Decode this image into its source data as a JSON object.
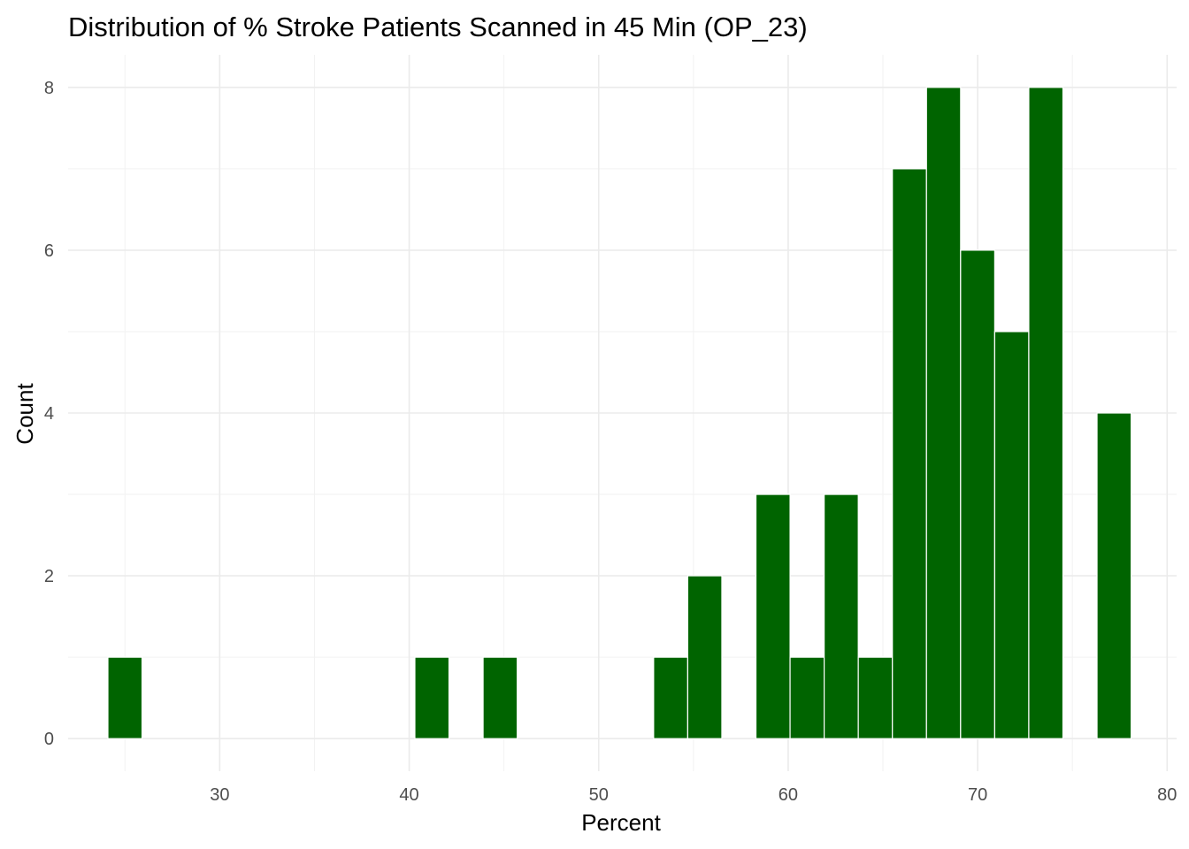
{
  "chart_data": {
    "type": "bar",
    "title": "Distribution of % Stroke Patients Scanned in 45 Min (OP_23)",
    "xlabel": "Percent",
    "ylabel": "Count",
    "xlim": [
      22,
      80.5
    ],
    "ylim": [
      -0.4,
      8.4
    ],
    "x_ticks": [
      30,
      40,
      50,
      60,
      70,
      80
    ],
    "y_ticks": [
      0,
      2,
      4,
      6,
      8
    ],
    "grid": true,
    "bar_color": "#006400",
    "bins": [
      {
        "x0": 24.1,
        "x1": 25.9,
        "count": 1
      },
      {
        "x0": 40.3,
        "x1": 42.1,
        "count": 1
      },
      {
        "x0": 43.9,
        "x1": 45.7,
        "count": 1
      },
      {
        "x0": 52.9,
        "x1": 54.7,
        "count": 1
      },
      {
        "x0": 54.7,
        "x1": 56.5,
        "count": 2
      },
      {
        "x0": 58.3,
        "x1": 60.1,
        "count": 3
      },
      {
        "x0": 60.1,
        "x1": 61.9,
        "count": 1
      },
      {
        "x0": 61.9,
        "x1": 63.7,
        "count": 3
      },
      {
        "x0": 63.7,
        "x1": 65.5,
        "count": 1
      },
      {
        "x0": 65.5,
        "x1": 67.3,
        "count": 7
      },
      {
        "x0": 67.3,
        "x1": 69.1,
        "count": 8
      },
      {
        "x0": 69.1,
        "x1": 70.9,
        "count": 6
      },
      {
        "x0": 70.9,
        "x1": 72.7,
        "count": 5
      },
      {
        "x0": 72.7,
        "x1": 74.5,
        "count": 8
      },
      {
        "x0": 76.3,
        "x1": 78.1,
        "count": 4
      }
    ]
  }
}
